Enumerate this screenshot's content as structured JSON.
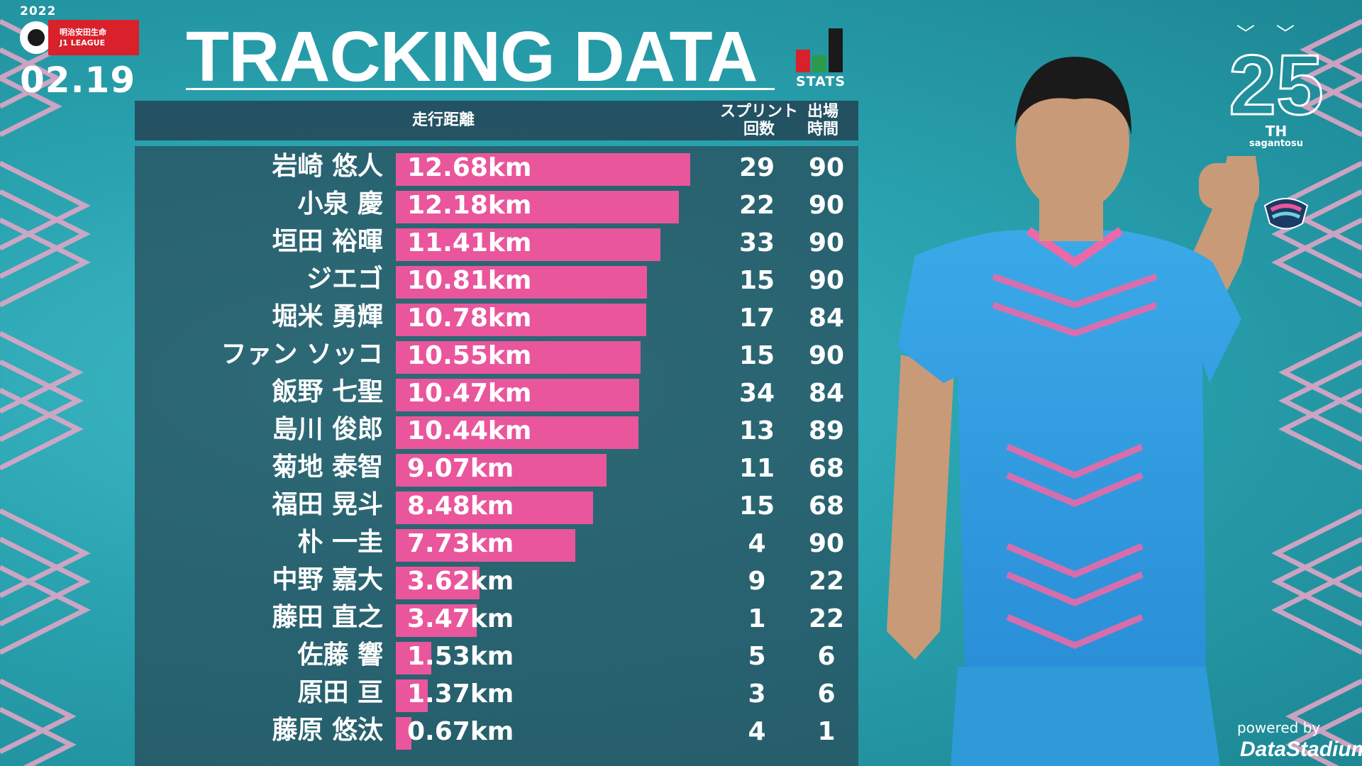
{
  "header": {
    "season": "2022",
    "league_line1": "明治安田生命",
    "league_line2": "J1 LEAGUE",
    "match_date": "02.19",
    "title": "TRACKING DATA",
    "stats_label": "STATS"
  },
  "columns": {
    "distance": "走行距離",
    "sprint_line1": "スプリント",
    "sprint_line2": "回数",
    "time_line1": "出場",
    "time_line2": "時間"
  },
  "branding": {
    "emblem_number": "25",
    "emblem_th": "TH",
    "emblem_team": "sagantosu",
    "powered_by": "powered by",
    "provider": "DataStadium"
  },
  "colors": {
    "bar": "#e9569c",
    "background": "#2aa3b0",
    "panel": "#284a58"
  },
  "chart_data": {
    "type": "bar",
    "orientation": "horizontal",
    "xlabel": "走行距離",
    "unit": "km",
    "categories": [
      "岩崎 悠人",
      "小泉 慶",
      "垣田 裕暉",
      "ジエゴ",
      "堀米 勇輝",
      "ファン ソッコ",
      "飯野 七聖",
      "島川 俊郎",
      "菊地 泰智",
      "福田 晃斗",
      "朴 一圭",
      "中野 嘉大",
      "藤田 直之",
      "佐藤 響",
      "原田 亘",
      "藤原 悠汰"
    ],
    "values": [
      12.68,
      12.18,
      11.41,
      10.81,
      10.78,
      10.55,
      10.47,
      10.44,
      9.07,
      8.48,
      7.73,
      3.62,
      3.47,
      1.53,
      1.37,
      0.67
    ],
    "labels": [
      "12.68km",
      "12.18km",
      "11.41km",
      "10.81km",
      "10.78km",
      "10.55km",
      "10.47km",
      "10.44km",
      "9.07km",
      "8.48km",
      "7.73km",
      "3.62km",
      "3.47km",
      "1.53km",
      "1.37km",
      "0.67km"
    ],
    "sprints": [
      "29",
      "22",
      "33",
      "15",
      "17",
      "15",
      "34",
      "13",
      "11",
      "15",
      "4",
      "9",
      "1",
      "5",
      "3",
      "4"
    ],
    "minutes": [
      "90",
      "90",
      "90",
      "90",
      "84",
      "90",
      "84",
      "89",
      "68",
      "68",
      "90",
      "22",
      "22",
      "6",
      "6",
      "1"
    ],
    "xlim": [
      0,
      12.68
    ]
  }
}
